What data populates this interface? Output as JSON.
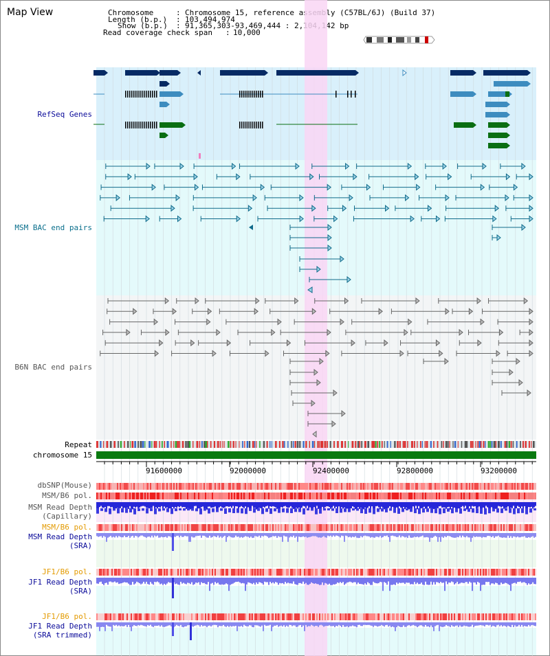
{
  "page": {
    "title": "Map View"
  },
  "info": {
    "chromosome_key": "Chromosome",
    "chromosome_val": "Chromosome 15, reference assembly (C57BL/6J) (Build 37)",
    "length_key": "Length (b.p.)",
    "length_val": "103,494,974",
    "show_key": "Show (b.p.)",
    "show_val": "91,365,303-93,469,444 : 2,104,142 bp",
    "coverage_key": "Read coverage check span",
    "coverage_val": "10,000"
  },
  "tracks": {
    "refseq": "RefSeq Genes",
    "msm_bac": "MSM BAC end pairs",
    "b6n_bac": "B6N BAC end pairs",
    "repeat": "Repeat",
    "chromosome": "chromosome 15",
    "dbsnp": "dbSNP(Mouse)",
    "msm_b6_pol": "MSM/B6 pol.",
    "msm_depth_cap_1": "MSM Read Depth",
    "msm_depth_cap_2": "(Capillary)",
    "msm_b6_pol_2": "MSM/B6 pol.",
    "msm_depth_sra_1": "MSM Read Depth",
    "msm_depth_sra_2": "(SRA)",
    "jf1_pol_1": "JF1/B6 pol.",
    "jf1_depth_sra_1": "JF1 Read Depth",
    "jf1_depth_sra_2": "(SRA)",
    "jf1_pol_2": "JF1/B6 pol.",
    "jf1_depth_trim_1": "JF1 Read Depth",
    "jf1_depth_trim_2": "(SRA trimmed)"
  },
  "axis": {
    "ticks": [
      "91600000",
      "92000000",
      "92400000",
      "92800000",
      "93200000"
    ]
  },
  "colors": {
    "highlight": "#f9d6f4",
    "refseq_bg": "#d9f0fb",
    "msm_bg": "#e4fafb",
    "b6n_bg": "#f3f5f6",
    "gene_dark": "#062a64",
    "gene_mid": "#3d8cbf",
    "gene_green": "#0a6e12",
    "msm_line": "#0f6a8a",
    "b6n_line": "#666666",
    "chrom_bar": "#0a7a10",
    "pol_red": "#ee2b2b",
    "depth_blue": "#2a2ae0",
    "depth_light": "#8a8af2",
    "label_blue": "#0a0a99",
    "label_teal": "#0a6f8c",
    "label_gray": "#555555",
    "label_orange": "#e39a00"
  }
}
